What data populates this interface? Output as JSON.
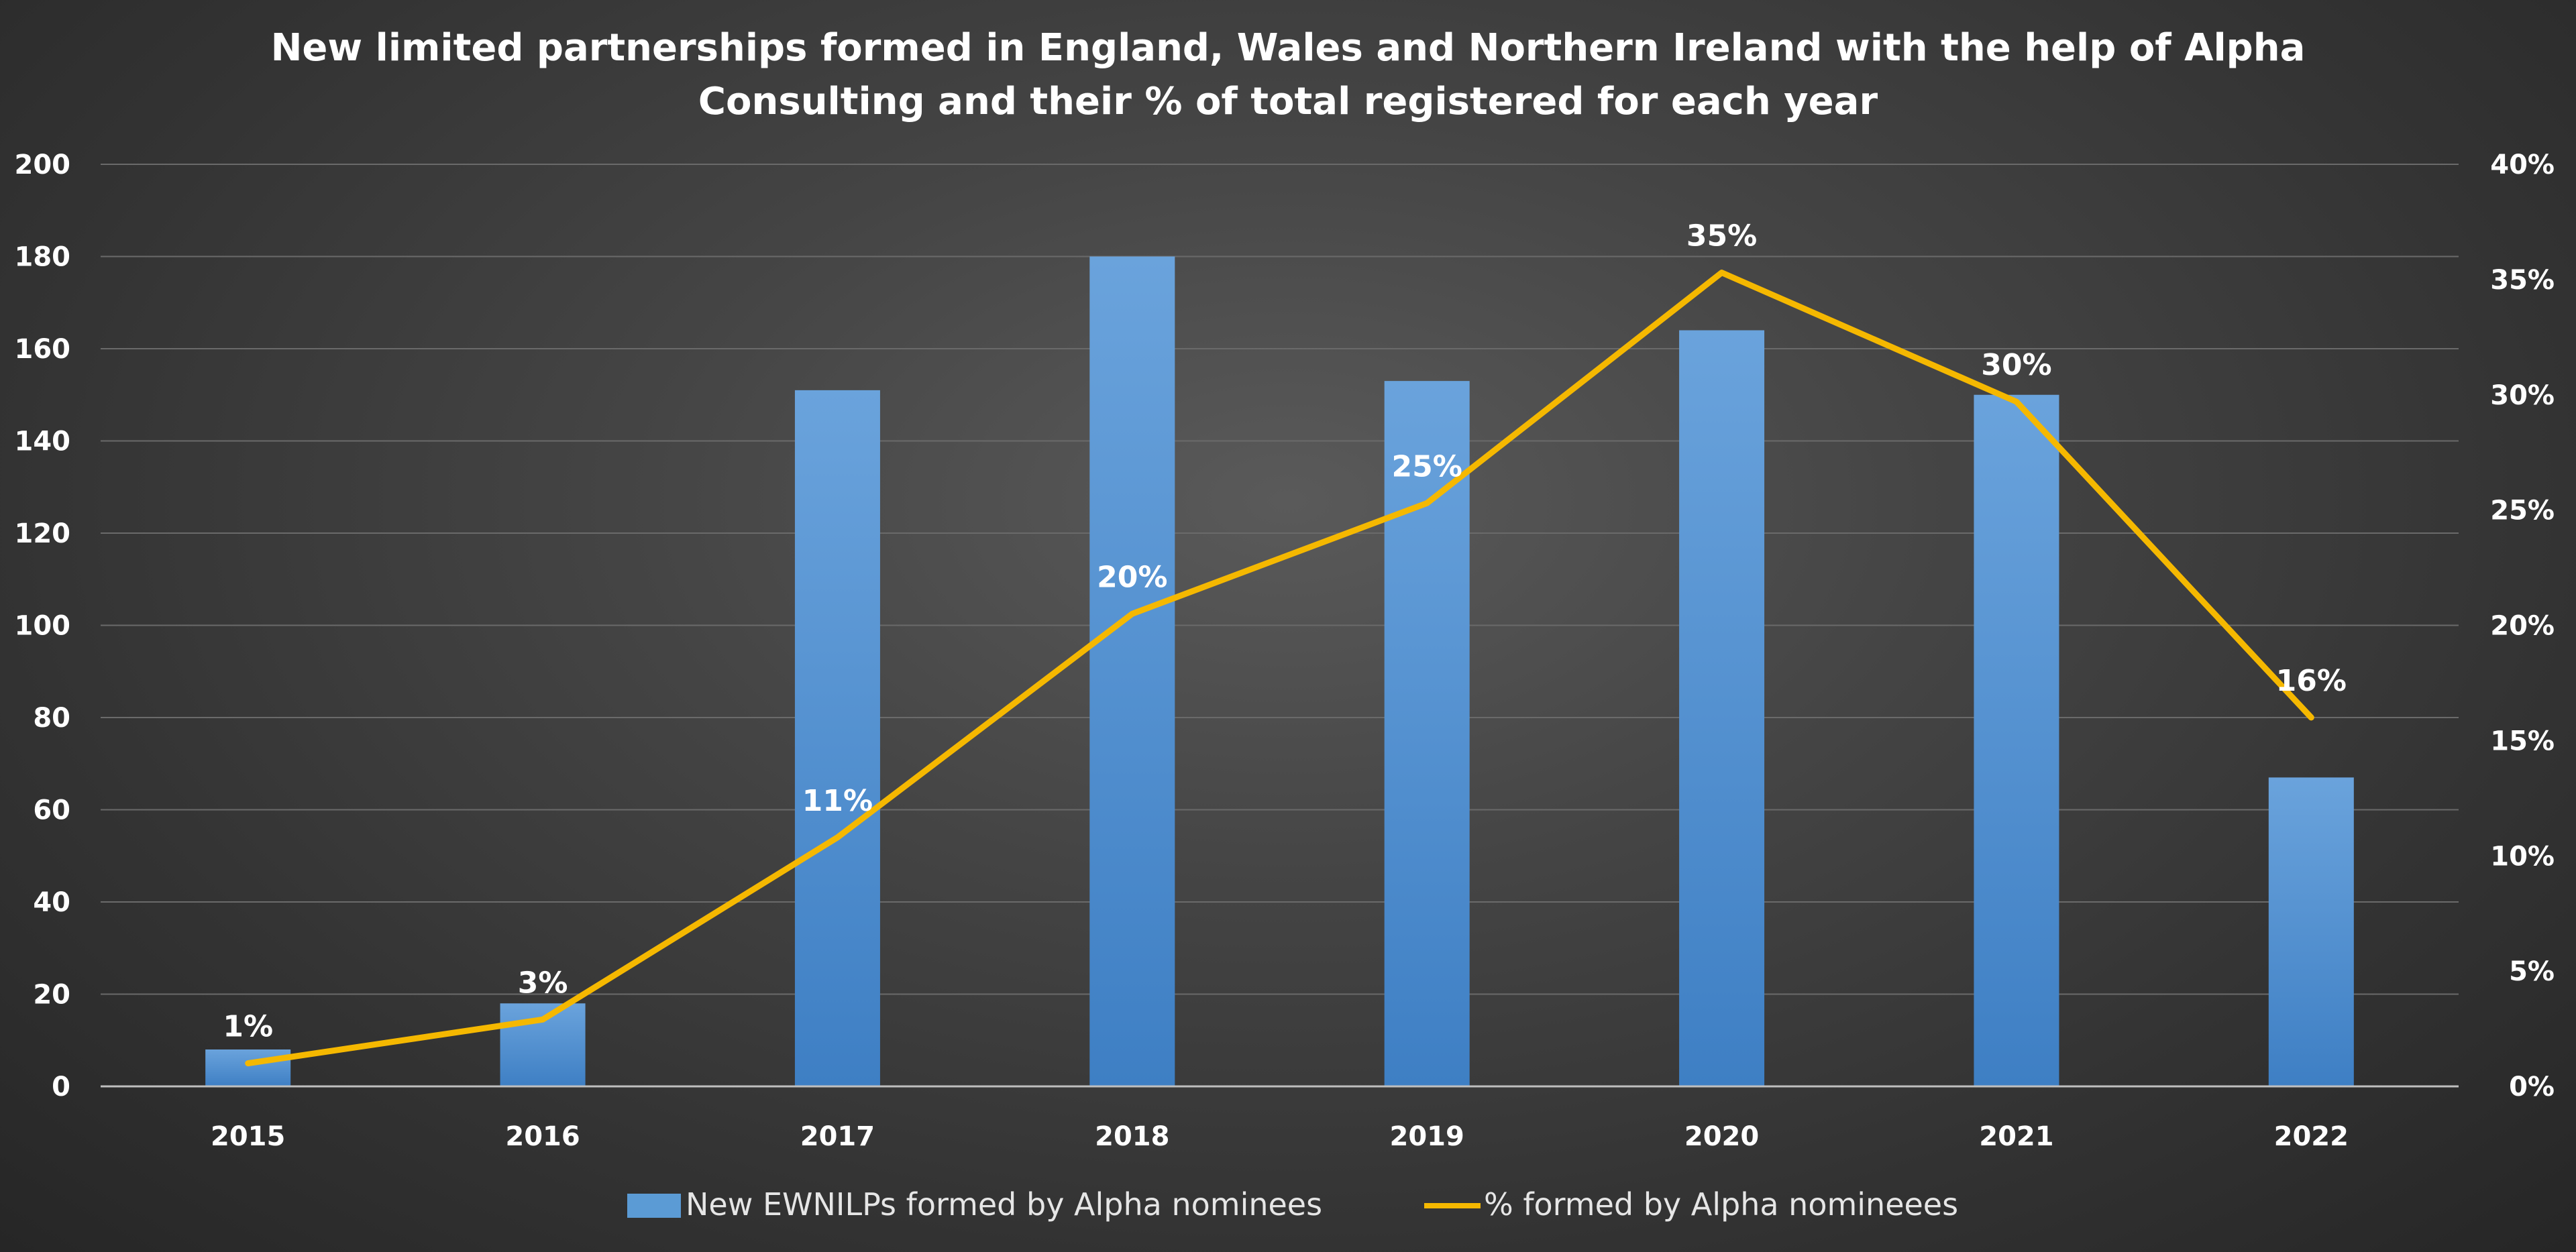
{
  "chart_data": {
    "type": "bar",
    "title": "New limited partnerships formed in England, Wales and Northern Ireland with the help of Alpha Consulting and their % of total registered for each year",
    "title_lines": [
      "New limited partnerships formed in England, Wales and Northern Ireland with the help of Alpha",
      "Consulting and their % of total registered for each year"
    ],
    "categories": [
      "2015",
      "2016",
      "2017",
      "2018",
      "2019",
      "2020",
      "2021",
      "2022"
    ],
    "series": [
      {
        "name": "New EWNILPs formed by Alpha nominees",
        "type": "bar",
        "axis": "left",
        "color": "#5b9bd5",
        "values": [
          8,
          18,
          151,
          180,
          153,
          164,
          150,
          67
        ]
      },
      {
        "name": "% formed by Alpha nomineees",
        "type": "line",
        "axis": "right",
        "color": "#f5b800",
        "values": [
          1.0,
          2.9,
          10.8,
          20.5,
          25.3,
          35.3,
          29.7,
          16.0
        ],
        "data_labels": [
          "1%",
          "3%",
          "11%",
          "20%",
          "25%",
          "35%",
          "30%",
          "16%"
        ]
      }
    ],
    "ylim": [
      0,
      200
    ],
    "yticks": [
      0,
      20,
      40,
      60,
      80,
      100,
      120,
      140,
      160,
      180,
      200
    ],
    "ytick_labels": [
      "0",
      "20",
      "40",
      "60",
      "80",
      "100",
      "120",
      "140",
      "160",
      "180",
      "200"
    ],
    "y2lim": [
      0,
      40
    ],
    "y2ticks": [
      0,
      5,
      10,
      15,
      20,
      25,
      30,
      35,
      40
    ],
    "y2tick_labels": [
      "0%",
      "5%",
      "10%",
      "15%",
      "20%",
      "25%",
      "30%",
      "35%",
      "40%"
    ],
    "xlabel": "",
    "ylabel": "",
    "grid": true,
    "legend_position": "bottom"
  }
}
